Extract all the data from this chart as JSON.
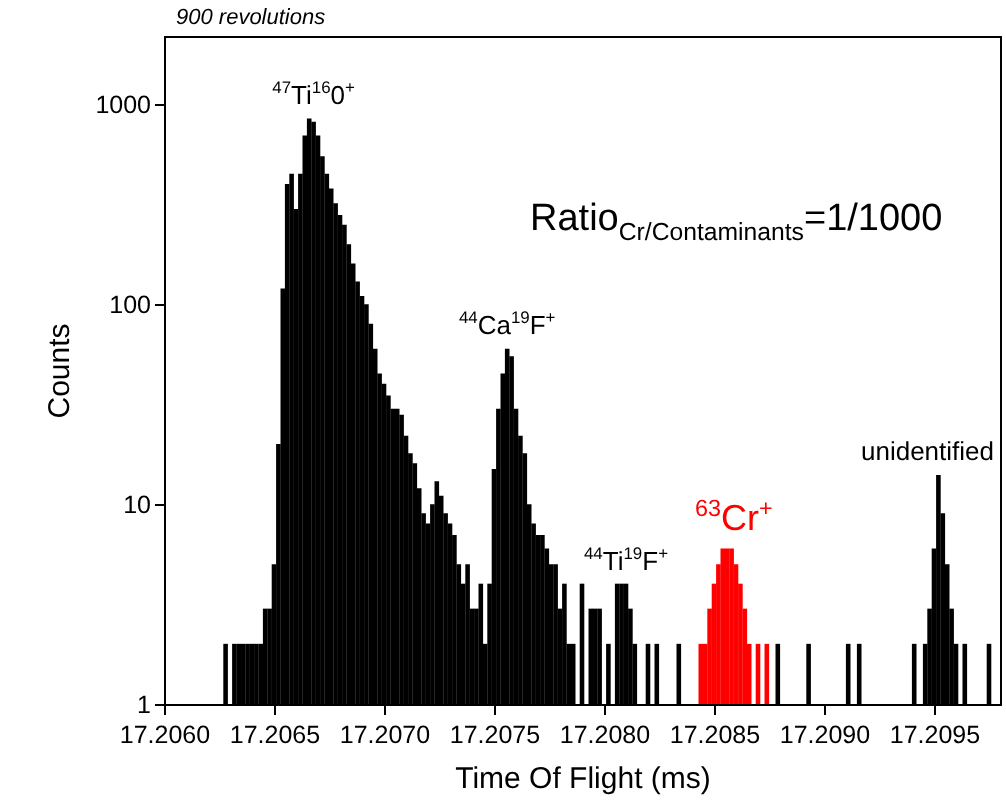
{
  "chart_data": {
    "type": "bar",
    "xlabel": "Time Of Flight (ms)",
    "ylabel": "Counts",
    "log": "y",
    "xlim": [
      17.206,
      17.2098
    ],
    "ylim": [
      1,
      2200
    ],
    "xticks": [
      {
        "value": 17.206,
        "label": "17.2060"
      },
      {
        "value": 17.2065,
        "label": "17.2065"
      },
      {
        "value": 17.207,
        "label": "17.2070"
      },
      {
        "value": 17.2075,
        "label": "17.2075"
      },
      {
        "value": 17.208,
        "label": "17.2080"
      },
      {
        "value": 17.2085,
        "label": "17.2085"
      },
      {
        "value": 17.209,
        "label": "17.2090"
      },
      {
        "value": 17.2095,
        "label": "17.2095"
      }
    ],
    "yticks": [
      1,
      10,
      100,
      1000
    ],
    "annotations": [
      "900 revolutions",
      "Ratio$_{Cr/Contaminants}$=1/1000",
      {
        "text": "$^{47}$Ti$^{16}$0$^{+}$",
        "x": 17.20668,
        "y": 850
      },
      {
        "text": "$^{44}$Ca$^{19}$F$^{+}$",
        "x": 17.20756,
        "y": 60
      },
      {
        "text": "$^{44}$Ti$^{19}$F$^{+}$",
        "x": 17.2081,
        "y": 4
      },
      {
        "text": "unidentified",
        "x": 17.20952,
        "y": 14
      }
    ],
    "series": [
      {
        "color": "#000000",
        "x": [
          17.20628,
          17.20632,
          17.20634,
          17.20636,
          17.20638,
          17.2064,
          17.20642,
          17.20644,
          17.20646,
          17.20648,
          17.2065,
          17.20652,
          17.20654,
          17.20656,
          17.20658,
          17.2066,
          17.20662,
          17.20664,
          17.20666,
          17.20668,
          17.2067,
          17.20672,
          17.20674,
          17.20676,
          17.20678,
          17.2068,
          17.20682,
          17.20684,
          17.20686,
          17.20688,
          17.2069,
          17.20692,
          17.20694,
          17.20696,
          17.20698,
          17.207,
          17.20702,
          17.20704,
          17.20706,
          17.20708,
          17.2071,
          17.20712,
          17.20714,
          17.20716,
          17.20718,
          17.2072,
          17.20722,
          17.20724,
          17.20726,
          17.20728,
          17.2073,
          17.20732,
          17.20734,
          17.20736,
          17.20738,
          17.2074,
          17.20742,
          17.20744,
          17.20746,
          17.20748,
          17.2075,
          17.20752,
          17.20754,
          17.20756,
          17.20758,
          17.2076,
          17.20762,
          17.20764,
          17.20766,
          17.20768,
          17.2077,
          17.20772,
          17.20774,
          17.20776,
          17.20778,
          17.2078,
          17.20782,
          17.20784,
          17.20786,
          17.2079,
          17.20794,
          17.20796,
          17.20798,
          17.20802,
          17.20806,
          17.20808,
          17.2081,
          17.20812,
          17.20814,
          17.2082,
          17.20824,
          17.20834,
          17.20879,
          17.20893,
          17.20911,
          17.20916,
          17.20941,
          17.20946,
          17.20948,
          17.2095,
          17.20952,
          17.20954,
          17.20956,
          17.20958,
          17.2096,
          17.20964,
          17.20975
        ],
        "values": [
          2,
          2,
          2,
          2,
          2,
          2,
          2,
          2,
          3,
          3,
          5,
          20,
          120,
          400,
          450,
          300,
          450,
          700,
          850,
          820,
          700,
          550,
          450,
          380,
          320,
          280,
          250,
          200,
          160,
          130,
          110,
          100,
          80,
          60,
          45,
          40,
          35,
          30,
          30,
          28,
          22,
          18,
          16,
          12,
          9,
          8,
          10,
          13,
          11,
          9,
          8,
          7,
          5,
          4,
          5,
          3,
          3,
          4,
          2,
          4,
          15,
          30,
          45,
          60,
          55,
          30,
          22,
          18,
          10,
          8,
          7,
          7,
          6,
          5,
          5,
          3,
          4,
          2,
          2,
          4,
          3,
          3,
          3,
          2,
          4,
          4,
          4,
          3,
          2,
          2,
          2,
          2,
          2,
          2,
          2,
          2,
          2,
          2,
          3,
          6,
          14,
          9,
          5,
          3,
          2,
          2,
          2
        ]
      },
      {
        "name": "$^{63}$Cr$^{+}$",
        "color": "#ff0000",
        "x": [
          17.20844,
          17.20846,
          17.20848,
          17.2085,
          17.20852,
          17.20854,
          17.20856,
          17.20858,
          17.2086,
          17.20862,
          17.20864,
          17.20866,
          17.2087,
          17.20874
        ],
        "values": [
          2,
          2,
          3,
          4,
          5,
          6,
          6,
          6,
          5,
          4,
          3,
          2,
          2,
          2
        ]
      }
    ]
  }
}
